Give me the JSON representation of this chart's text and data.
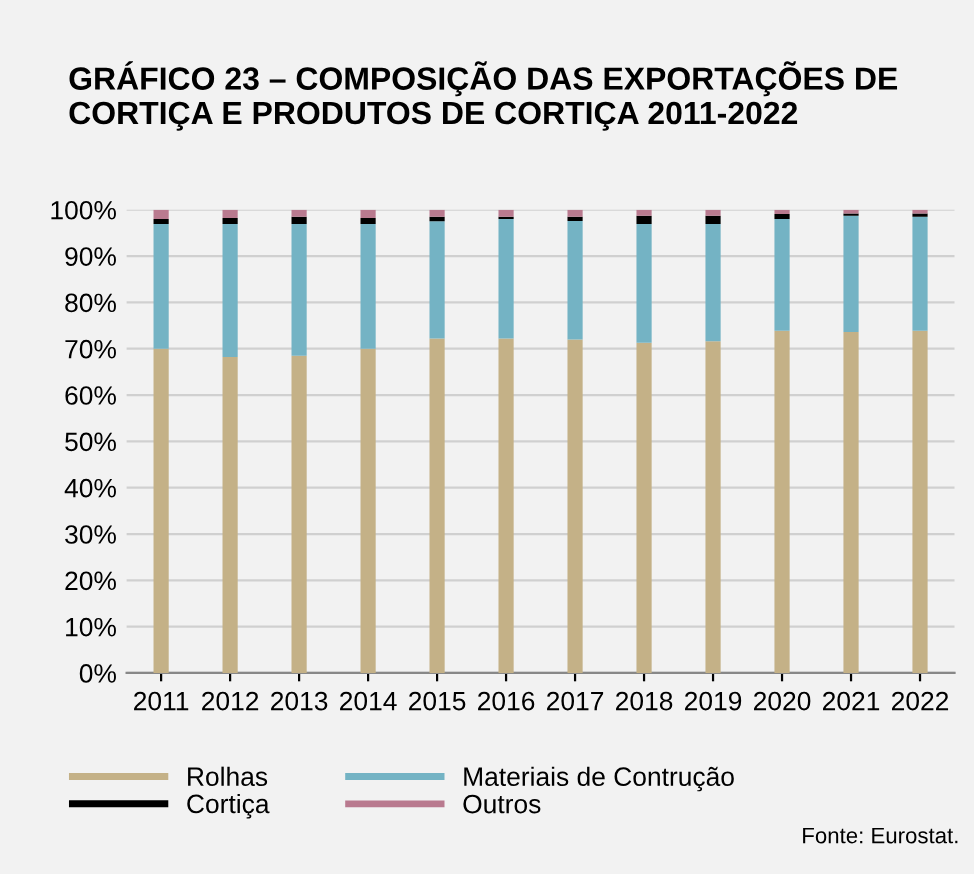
{
  "chart_data": {
    "type": "bar",
    "stacked": true,
    "title": "GRÁFICO 23 – COMPOSIÇÃO DAS EXPORTAÇÕES DE\nCORTIÇA E PRODUTOS DE CORTIÇA 2011-2022",
    "categories": [
      "2011",
      "2012",
      "2013",
      "2014",
      "2015",
      "2016",
      "2017",
      "2018",
      "2019",
      "2020",
      "2021",
      "2022"
    ],
    "series": [
      {
        "name": "Rolhas",
        "color": "#c4b187",
        "values": [
          70.0,
          68.2,
          68.5,
          70.0,
          72.2,
          72.2,
          72.0,
          71.3,
          71.6,
          73.9,
          73.6,
          73.9
        ]
      },
      {
        "name": "Materiais de Contrução",
        "color": "#74b3c4",
        "values": [
          26.9,
          28.7,
          28.4,
          26.9,
          25.3,
          25.8,
          25.6,
          25.6,
          25.3,
          24.1,
          25.1,
          24.6
        ]
      },
      {
        "name": "Cortiça",
        "color": "#000000",
        "values": [
          1.1,
          1.3,
          1.6,
          1.3,
          1.0,
          0.5,
          0.9,
          1.8,
          1.8,
          1.1,
          0.5,
          0.7
        ]
      },
      {
        "name": "Outros",
        "color": "#b97a8f",
        "values": [
          2.0,
          1.8,
          1.5,
          1.8,
          1.5,
          1.5,
          1.5,
          1.3,
          1.3,
          0.9,
          0.8,
          0.8
        ]
      }
    ],
    "ylim": [
      0,
      100
    ],
    "yticks": [
      {
        "value": 0,
        "label": "0%"
      },
      {
        "value": 10,
        "label": "10%"
      },
      {
        "value": 20,
        "label": "20%"
      },
      {
        "value": 30,
        "label": "30%"
      },
      {
        "value": 40,
        "label": "40%"
      },
      {
        "value": 50,
        "label": "50%"
      },
      {
        "value": 60,
        "label": "60%"
      },
      {
        "value": 70,
        "label": "70%"
      },
      {
        "value": 80,
        "label": "80%"
      },
      {
        "value": 90,
        "label": "90%"
      },
      {
        "value": 100,
        "label": "100%"
      }
    ],
    "grid": "y",
    "legend": "bottom",
    "annotations": [
      "Fonte: Eurostat."
    ]
  }
}
